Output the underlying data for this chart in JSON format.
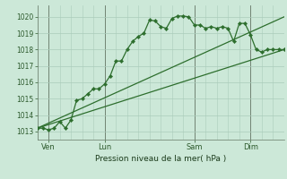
{
  "background_color": "#cce8d8",
  "grid_color": "#aaccbb",
  "line_color": "#2d6e2d",
  "title": "Pression niveau de la mer( hPa )",
  "ylabel_ticks": [
    1013,
    1014,
    1015,
    1016,
    1017,
    1018,
    1019,
    1020
  ],
  "ylim": [
    1012.5,
    1020.7
  ],
  "day_labels": [
    "Ven",
    "Lun",
    "Sam",
    "Dim"
  ],
  "day_positions": [
    2,
    12,
    28,
    38
  ],
  "vline_positions": [
    2,
    12,
    28,
    38
  ],
  "series1_x": [
    0,
    1,
    2,
    3,
    4,
    5,
    6,
    7,
    8,
    9,
    10,
    11,
    12,
    13,
    14,
    15,
    16,
    17,
    18,
    19,
    20,
    21,
    22,
    23,
    24,
    25,
    26,
    27,
    28,
    29,
    30,
    31,
    32,
    33,
    34,
    35,
    36,
    37,
    38,
    39,
    40,
    41,
    42,
    43,
    44
  ],
  "series1_y": [
    1013.2,
    1013.2,
    1013.1,
    1013.2,
    1013.6,
    1013.2,
    1013.7,
    1014.9,
    1015.0,
    1015.3,
    1015.6,
    1015.6,
    1015.9,
    1016.4,
    1017.3,
    1017.3,
    1018.0,
    1018.5,
    1018.8,
    1019.0,
    1019.8,
    1019.75,
    1019.4,
    1019.3,
    1019.9,
    1020.05,
    1020.05,
    1020.0,
    1019.5,
    1019.5,
    1019.3,
    1019.4,
    1019.3,
    1019.4,
    1019.3,
    1018.5,
    1019.6,
    1019.6,
    1018.9,
    1018.0,
    1017.85,
    1018.0,
    1018.0,
    1018.0,
    1018.0
  ],
  "series2_x": [
    0,
    44
  ],
  "series2_y": [
    1013.2,
    1020.0
  ],
  "series3_x": [
    0,
    44
  ],
  "series3_y": [
    1013.2,
    1018.0
  ],
  "xlim": [
    0,
    44
  ]
}
